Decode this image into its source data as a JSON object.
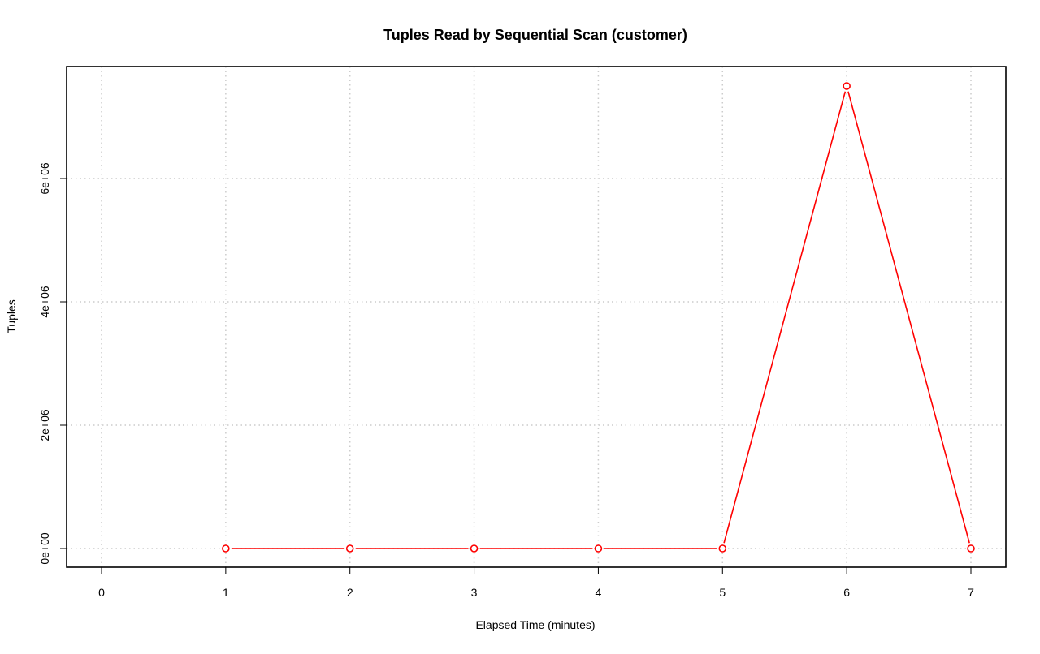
{
  "chart_data": {
    "type": "line",
    "title": "Tuples Read by Sequential Scan (customer)",
    "xlabel": "Elapsed Time (minutes)",
    "ylabel": "Tuples",
    "xlim": [
      0,
      7
    ],
    "ylim": [
      -300000,
      7800000
    ],
    "x_ticks": [
      0,
      1,
      2,
      3,
      4,
      5,
      6,
      7
    ],
    "y_ticks": [
      0,
      2000000,
      4000000,
      6000000
    ],
    "y_tick_labels": [
      "0e+00",
      "2e+06",
      "4e+06",
      "6e+06"
    ],
    "grid": true,
    "series": [
      {
        "x": [
          1,
          2,
          3,
          4,
          5,
          6,
          7
        ],
        "values": [
          0,
          0,
          0,
          0,
          0,
          7500000,
          0
        ],
        "color": "#ff0000",
        "marker": "open-circle"
      }
    ]
  }
}
